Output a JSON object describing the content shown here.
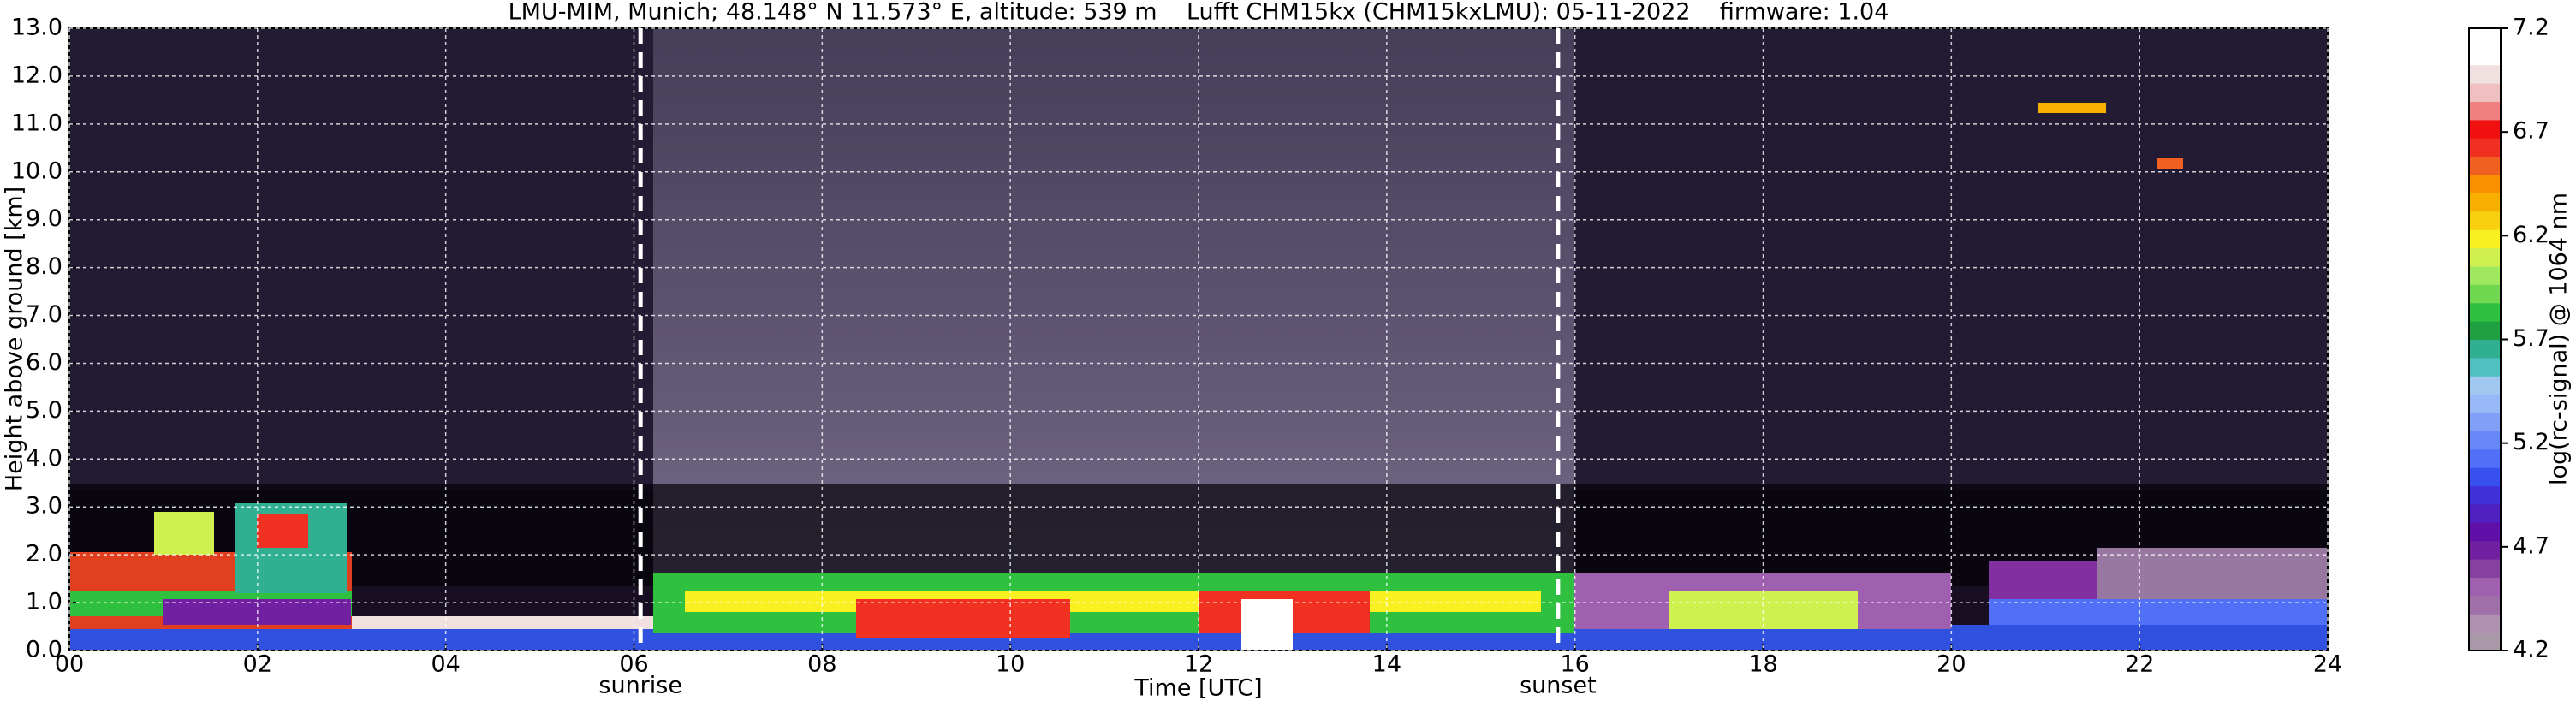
{
  "chart_data": {
    "type": "heatmap",
    "title": "LMU-MIM, Munich; 48.148° N 11.573° E, altitude: 539 m    Lufft CHM15kx (CHM15kxLMU): 05-11-2022    firmware: 1.04",
    "x_label": "Time [UTC]",
    "y_label": "Height above ground [km]",
    "xlim": [
      0,
      24
    ],
    "xticks": [
      {
        "value": 0,
        "label": "00"
      },
      {
        "value": 2,
        "label": "02"
      },
      {
        "value": 4,
        "label": "04"
      },
      {
        "value": 6,
        "label": "06"
      },
      {
        "value": 8,
        "label": "08"
      },
      {
        "value": 10,
        "label": "10"
      },
      {
        "value": 12,
        "label": "12"
      },
      {
        "value": 14,
        "label": "14"
      },
      {
        "value": 16,
        "label": "16"
      },
      {
        "value": 18,
        "label": "18"
      },
      {
        "value": 20,
        "label": "20"
      },
      {
        "value": 22,
        "label": "22"
      },
      {
        "value": 24,
        "label": "24"
      }
    ],
    "ylim": [
      0,
      13
    ],
    "yticks": [
      {
        "value": 0,
        "label": "0.0"
      },
      {
        "value": 1,
        "label": "1.0"
      },
      {
        "value": 2,
        "label": "2.0"
      },
      {
        "value": 3,
        "label": "3.0"
      },
      {
        "value": 4,
        "label": "4.0"
      },
      {
        "value": 5,
        "label": "5.0"
      },
      {
        "value": 6,
        "label": "6.0"
      },
      {
        "value": 7,
        "label": "7.0"
      },
      {
        "value": 8,
        "label": "8.0"
      },
      {
        "value": 9,
        "label": "9.0"
      },
      {
        "value": 10,
        "label": "10.0"
      },
      {
        "value": 11,
        "label": "11.0"
      },
      {
        "value": 12,
        "label": "12.0"
      },
      {
        "value": 13,
        "label": "13.0"
      }
    ],
    "grid": true,
    "annotations": [
      {
        "text": "sunrise",
        "x": 6.07
      },
      {
        "text": "sunset",
        "x": 15.82
      }
    ],
    "colorbar": {
      "label": "log(rc-signal) @ 1064 nm",
      "lim": [
        4.2,
        7.2
      ],
      "ticks": [
        4.2,
        4.7,
        5.2,
        5.7,
        6.2,
        6.7,
        7.2
      ],
      "colors": [
        "#a898a8",
        "#b090b0",
        "#a070a8",
        "#a060b0",
        "#8840a0",
        "#7020a0",
        "#6010a8",
        "#5020c0",
        "#4030d8",
        "#3850f0",
        "#5070f8",
        "#6888f8",
        "#80a0f8",
        "#98b8f8",
        "#a0c8f0",
        "#50c0c0",
        "#30b090",
        "#20a040",
        "#30c040",
        "#70d850",
        "#a0e860",
        "#d0f050",
        "#f8f020",
        "#f8d010",
        "#f8b000",
        "#f89000",
        "#f06020",
        "#f03020",
        "#f01010",
        "#f08080",
        "#f0c0c0",
        "#f0e0e0",
        "#ffffff",
        "#ffffff"
      ]
    }
  }
}
